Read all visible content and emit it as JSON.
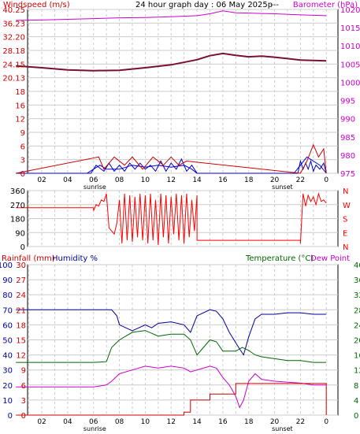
{
  "colors": {
    "wind": "#cc0000",
    "gust": "#0000cc",
    "baro": "#cc00cc",
    "trend": "#7a1030",
    "direction": "#ff0000",
    "humidity": "#000099",
    "temperature": "#006600",
    "dewpoint": "#cc00cc",
    "rain": "#cc0000",
    "grid": "#cccccc"
  },
  "header": {
    "left_label": "Windspeed (m/s)",
    "title": "24 hour graph day : 06 May 2025p",
    "dashes": "---",
    "right_label": "Barometer (hPa)"
  },
  "hours": [
    "02",
    "04",
    "06",
    "08",
    "10",
    "12",
    "14",
    "16",
    "18",
    "20",
    "22",
    "0"
  ],
  "sunrise_label": "sunrise",
  "sunset_label": "sunset",
  "panel1": {
    "wind_ticks": [
      "0",
      "3",
      "6",
      "9",
      "12",
      "16",
      "18",
      "20.13",
      "24.15",
      "28.18",
      "32.20",
      "36.23",
      "40.25"
    ],
    "baro_ticks": [
      "975",
      "980",
      "985",
      "990",
      "995",
      "1000",
      "1005",
      "1010",
      "1015",
      "1020"
    ],
    "chart_data": {
      "type": "line",
      "x_unit": "hour",
      "series": [
        {
          "name": "Barometer (hPa)",
          "axis": "right",
          "x": [
            0,
            2,
            4,
            6,
            8,
            10,
            12,
            14,
            15,
            16,
            17,
            18,
            19,
            20,
            22,
            24
          ],
          "y": [
            1017.0,
            1017.1,
            1017.3,
            1017.5,
            1017.7,
            1017.8,
            1018.0,
            1018.3,
            1018.8,
            1019.6,
            1019.1,
            1019.0,
            1018.9,
            1018.8,
            1018.5,
            1018.3
          ]
        },
        {
          "name": "Barometer trend",
          "axis": "right",
          "x": [
            0,
            2,
            4,
            6,
            8,
            10,
            12,
            14,
            15,
            16,
            17,
            18,
            19,
            20,
            21,
            22,
            24
          ],
          "y": [
            1004.5,
            1004.0,
            1003.4,
            1003.2,
            1003.3,
            1004.0,
            1004.8,
            1006.2,
            1007.3,
            1007.9,
            1007.4,
            1007.0,
            1007.2,
            1006.9,
            1006.5,
            1006.1,
            1005.9
          ]
        },
        {
          "name": "Windspeed (m/s)",
          "axis": "left",
          "x": [
            0,
            4.5,
            5.8,
            6.2,
            6.8,
            7.2,
            7.6,
            8.0,
            8.4,
            8.8,
            9.2,
            9.6,
            10.0,
            10.4,
            10.8,
            11.2,
            11.6,
            12.0,
            12.4,
            12.8,
            13.2,
            13.6,
            14.0,
            20.5,
            21.8,
            22.0,
            22.2,
            22.4,
            22.6,
            22.8,
            23.0,
            23.2,
            23.5,
            23.8,
            24
          ],
          "y": [
            0,
            0,
            0,
            2,
            0.5,
            2.5,
            0.5,
            2,
            0.5,
            2.5,
            1,
            2.5,
            1,
            2,
            0.5,
            3,
            0.5,
            2.5,
            1,
            3.5,
            0.5,
            2,
            0,
            0,
            0,
            3,
            1,
            2.5,
            1,
            3,
            0.5,
            2,
            1,
            2.5,
            0
          ]
        },
        {
          "name": "Gust (m/s)",
          "axis": "left",
          "x": [
            0,
            5.5,
            6.0,
            6.5,
            7.0,
            8.0,
            9.0,
            10.0,
            11.0,
            12.0,
            13.0,
            13.6,
            14.0,
            21.5,
            22.0,
            22.5,
            23.0,
            23.5,
            24
          ],
          "y": [
            0,
            0,
            1,
            2,
            1,
            1,
            2,
            1.5,
            2,
            1.5,
            2,
            1,
            0,
            0,
            2,
            4,
            3,
            2,
            0
          ]
        },
        {
          "name": "Max gust (m/s)",
          "axis": "left",
          "x": [
            0,
            6.4,
            6.8,
            7.6,
            8.4,
            9.0,
            9.8,
            10.6,
            11.4,
            12.0,
            12.6,
            13.2,
            22.0,
            22.5,
            23.0,
            23.4,
            23.8,
            24
          ],
          "y": [
            0,
            4,
            1,
            4,
            2,
            4,
            1,
            4,
            2,
            4,
            2,
            3,
            0,
            3,
            7,
            4,
            6,
            0
          ]
        }
      ]
    }
  },
  "panel2": {
    "dir_ticks": [
      "360",
      "270",
      "180",
      "90",
      "0"
    ],
    "compass": [
      "N",
      "W",
      "S",
      "E",
      "N"
    ],
    "chart_data": {
      "type": "line",
      "series": [
        {
          "name": "Wind direction (deg)",
          "x": [
            0,
            6.0,
            6.0,
            6.2,
            6.4,
            6.6,
            6.8,
            7.0,
            7.2,
            7.6,
            7.8,
            8.0,
            8.2,
            8.4,
            8.6,
            8.8,
            9.0,
            9.2,
            9.4,
            9.6,
            9.8,
            10.0,
            10.2,
            10.4,
            10.6,
            10.8,
            11.0,
            11.2,
            11.4,
            11.6,
            11.8,
            12.0,
            12.2,
            12.4,
            12.6,
            12.8,
            13.0,
            13.2,
            13.4,
            13.6,
            13.8,
            14.0,
            14.0,
            22.0,
            22.0,
            22.2,
            22.4,
            22.6,
            22.8,
            23.0,
            23.2,
            23.4,
            23.6,
            23.8,
            24
          ],
          "y": [
            250,
            250,
            230,
            270,
            260,
            300,
            290,
            340,
            120,
            80,
            150,
            300,
            20,
            340,
            40,
            330,
            30,
            320,
            60,
            340,
            40,
            330,
            20,
            340,
            40,
            300,
            10,
            340,
            60,
            330,
            20,
            320,
            80,
            340,
            40,
            330,
            20,
            340,
            60,
            300,
            100,
            330,
            40,
            40,
            20,
            340,
            260,
            330,
            290,
            320,
            270,
            340,
            290,
            300,
            280
          ]
        }
      ]
    }
  },
  "panel3": {
    "rain_label": "Rainfall (mm)",
    "humidity_label": "Humidity %",
    "temp_label": "Temperature (°C)",
    "dew_label": "Dew Point",
    "humidity_ticks": [
      "0",
      "10",
      "20",
      "30",
      "40",
      "50",
      "60",
      "70",
      "80",
      "90",
      "100"
    ],
    "rain_ticks": [
      "0",
      "3",
      "6",
      "9",
      "12",
      "15",
      "18",
      "21",
      "24",
      "27",
      "30"
    ],
    "temp_ticks": [
      "0",
      "4",
      "8",
      "12",
      "16",
      "20",
      "24",
      "28",
      "32",
      "36",
      "40"
    ],
    "chart_data": {
      "type": "line",
      "series": [
        {
          "name": "Humidity %",
          "axis": "humidity",
          "x": [
            0,
            2,
            4,
            6,
            7.4,
            7.8,
            8,
            9,
            10,
            10.5,
            11,
            12,
            13,
            13.5,
            14,
            15,
            15.5,
            16,
            16.5,
            17,
            17.3,
            17.6,
            18,
            18.5,
            19,
            19.5,
            20,
            21,
            22,
            23,
            24
          ],
          "y": [
            70,
            70,
            70,
            70,
            70,
            66,
            60,
            56,
            60,
            58,
            61,
            62,
            60,
            55,
            66,
            70,
            69,
            64,
            55,
            48,
            44,
            40,
            52,
            64,
            67,
            67,
            67,
            68,
            68,
            67,
            67
          ]
        },
        {
          "name": "Temperature (°C)",
          "axis": "temp",
          "x": [
            0,
            2,
            4,
            6,
            7.0,
            7.4,
            8,
            9,
            10,
            11,
            12,
            13,
            13.5,
            14,
            15,
            15.5,
            16,
            16.5,
            17,
            17.5,
            18,
            18.5,
            19,
            20,
            21,
            22,
            23,
            24
          ],
          "y": [
            14,
            14,
            14,
            14,
            14.2,
            18,
            20,
            22,
            22.5,
            21,
            21.5,
            21.5,
            20,
            16,
            20,
            19.5,
            17,
            17,
            17,
            18,
            17.2,
            16,
            15.5,
            15,
            14.5,
            14.5,
            14,
            14
          ]
        },
        {
          "name": "Dew Point",
          "axis": "temp",
          "x": [
            0,
            2,
            4,
            6,
            7.0,
            7.4,
            8,
            9,
            10,
            11,
            12,
            13,
            13.5,
            14,
            15,
            15.5,
            16,
            16.5,
            17,
            17.3,
            17.6,
            18,
            18.5,
            19,
            20,
            22,
            23,
            24
          ],
          "y": [
            7.5,
            7.5,
            7.5,
            7.5,
            8,
            9,
            11,
            12,
            13,
            12.5,
            13,
            12.5,
            11.5,
            12,
            13,
            12.5,
            10,
            8,
            5,
            2,
            4,
            9,
            11,
            9.5,
            9,
            8.5,
            8,
            8
          ]
        },
        {
          "name": "Rainfall (mm)",
          "axis": "rain",
          "x": [
            0,
            13,
            13,
            13.5,
            13.5,
            15,
            15,
            17,
            17,
            24,
            24
          ],
          "y": [
            0,
            0,
            0.6,
            0.6,
            3.0,
            3.0,
            4.2,
            4.2,
            6.3,
            6.3,
            0
          ]
        }
      ]
    }
  }
}
